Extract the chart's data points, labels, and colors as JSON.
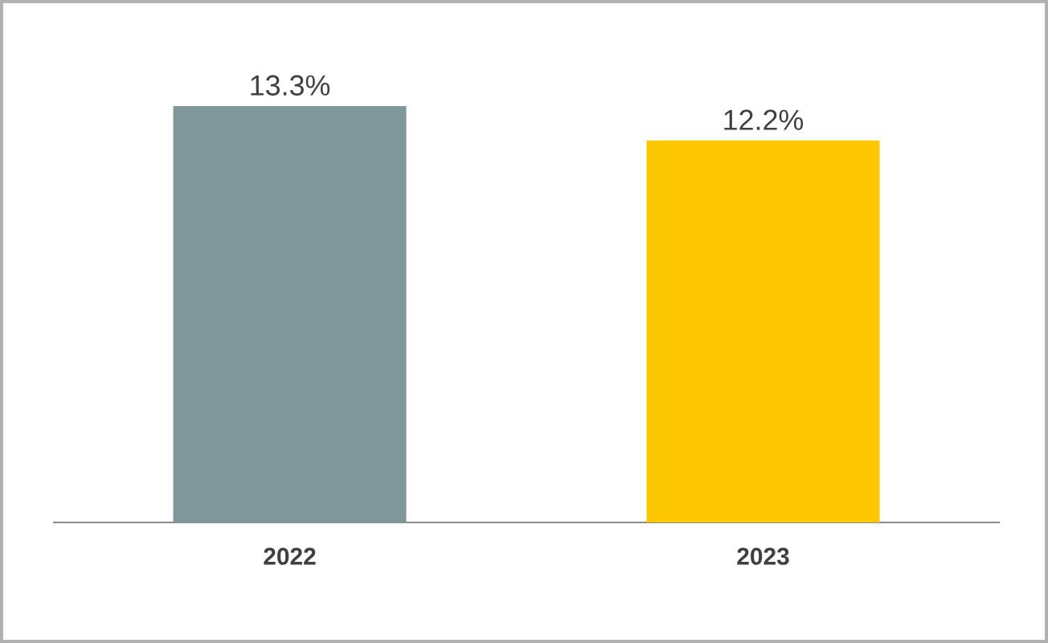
{
  "chart_data": {
    "type": "bar",
    "categories": [
      "2022",
      "2023"
    ],
    "values": [
      13.3,
      12.2
    ],
    "colors": [
      "#7f979b",
      "#fcc600"
    ],
    "value_labels": [
      "13.3%",
      "12.2%"
    ]
  }
}
